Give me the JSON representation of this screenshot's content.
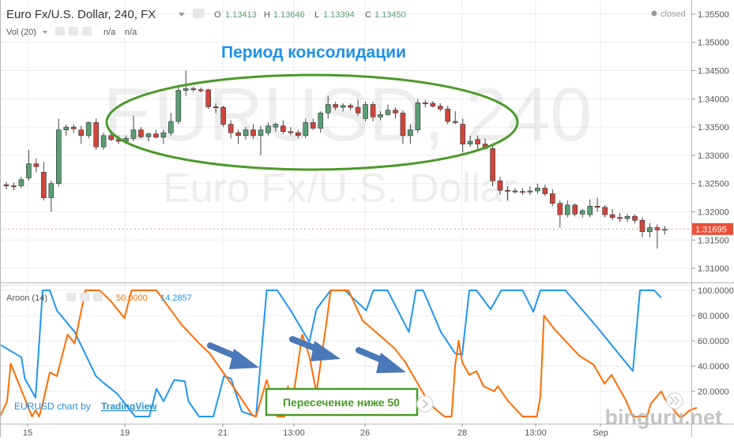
{
  "header": {
    "symbol": "Euro Fx/U.S. Dollar, 240, FX",
    "o_label": "O",
    "o_value": "1.13413",
    "h_label": "H",
    "h_value": "1.13646",
    "l_label": "L",
    "l_value": "1.13394",
    "c_label": "C",
    "c_value": "1.13450",
    "status": "closed",
    "vol_label": "Vol (20)",
    "vol_value1": "n/a",
    "vol_value2": "n/a"
  },
  "watermark": {
    "line1": "EURUSD, 240",
    "line2": "Euro Fx/U.S. Dollar"
  },
  "annotations": {
    "consolidation": "Период консолидации",
    "crossing": "Пересечение ниже 50"
  },
  "aroon": {
    "label": "Aroon (14)",
    "down_value": "50.0000",
    "up_value": "14.2857"
  },
  "credit": {
    "prefix": "EURUSD chart by",
    "brand": "TradingView"
  },
  "site_watermark": "binguru.net",
  "colors": {
    "bull": "#5a9e74",
    "bear": "#d0453c",
    "aroon_up": "#2196f3",
    "aroon_down": "#ff6d00",
    "ellipse": "#4a9a2a",
    "arrow": "#4a78b8",
    "title_blue": "#1e90e8",
    "price_tag": "#e8503a"
  },
  "chart_data": [
    {
      "type": "candlestick",
      "title": "Euro Fx/U.S. Dollar, 240, FX",
      "ylim": [
        1.3075,
        1.3575
      ],
      "price_axis_ticks": [
        "1.35500",
        "1.35000",
        "1.34500",
        "1.34000",
        "1.33500",
        "1.33000",
        "1.32500",
        "1.32000",
        "1.31500",
        "1.31000"
      ],
      "current_price_label": "1.31695",
      "time_axis_ticks": [
        "15",
        "19",
        "21",
        "13:00",
        "26",
        "28",
        "13:00",
        "Sep"
      ],
      "candles": [
        {
          "o": 1.3248,
          "h": 1.3253,
          "l": 1.324,
          "c": 1.3246
        },
        {
          "o": 1.3246,
          "h": 1.3252,
          "l": 1.3238,
          "c": 1.3245
        },
        {
          "o": 1.3246,
          "h": 1.3262,
          "l": 1.3242,
          "c": 1.3257
        },
        {
          "o": 1.326,
          "h": 1.331,
          "l": 1.3255,
          "c": 1.3285
        },
        {
          "o": 1.3285,
          "h": 1.3295,
          "l": 1.327,
          "c": 1.328
        },
        {
          "o": 1.327,
          "h": 1.3288,
          "l": 1.322,
          "c": 1.3225
        },
        {
          "o": 1.3225,
          "h": 1.3255,
          "l": 1.32,
          "c": 1.325
        },
        {
          "o": 1.325,
          "h": 1.3365,
          "l": 1.3245,
          "c": 1.3345
        },
        {
          "o": 1.3345,
          "h": 1.3355,
          "l": 1.3335,
          "c": 1.335
        },
        {
          "o": 1.335,
          "h": 1.3355,
          "l": 1.334,
          "c": 1.3347
        },
        {
          "o": 1.3345,
          "h": 1.3352,
          "l": 1.332,
          "c": 1.3335
        },
        {
          "o": 1.3335,
          "h": 1.336,
          "l": 1.333,
          "c": 1.3358
        },
        {
          "o": 1.3358,
          "h": 1.3365,
          "l": 1.331,
          "c": 1.3315
        },
        {
          "o": 1.3315,
          "h": 1.334,
          "l": 1.331,
          "c": 1.3335
        },
        {
          "o": 1.3335,
          "h": 1.334,
          "l": 1.3325,
          "c": 1.3328
        },
        {
          "o": 1.3328,
          "h": 1.3335,
          "l": 1.332,
          "c": 1.3325
        },
        {
          "o": 1.3325,
          "h": 1.3335,
          "l": 1.332,
          "c": 1.333
        },
        {
          "o": 1.333,
          "h": 1.337,
          "l": 1.3325,
          "c": 1.3345
        },
        {
          "o": 1.3345,
          "h": 1.335,
          "l": 1.333,
          "c": 1.3333
        },
        {
          "o": 1.3333,
          "h": 1.334,
          "l": 1.3325,
          "c": 1.3338
        },
        {
          "o": 1.3338,
          "h": 1.3345,
          "l": 1.333,
          "c": 1.3332
        },
        {
          "o": 1.3332,
          "h": 1.3345,
          "l": 1.332,
          "c": 1.334
        },
        {
          "o": 1.334,
          "h": 1.3375,
          "l": 1.3335,
          "c": 1.336
        },
        {
          "o": 1.336,
          "h": 1.3425,
          "l": 1.3355,
          "c": 1.3415
        },
        {
          "o": 1.3415,
          "h": 1.345,
          "l": 1.3405,
          "c": 1.3418
        },
        {
          "o": 1.3418,
          "h": 1.3422,
          "l": 1.3412,
          "c": 1.3416
        },
        {
          "o": 1.3416,
          "h": 1.342,
          "l": 1.3412,
          "c": 1.3415
        },
        {
          "o": 1.3416,
          "h": 1.3418,
          "l": 1.3382,
          "c": 1.3386
        },
        {
          "o": 1.3386,
          "h": 1.3392,
          "l": 1.3375,
          "c": 1.3385
        },
        {
          "o": 1.3385,
          "h": 1.3388,
          "l": 1.335,
          "c": 1.3355
        },
        {
          "o": 1.3355,
          "h": 1.3362,
          "l": 1.333,
          "c": 1.334
        },
        {
          "o": 1.334,
          "h": 1.3345,
          "l": 1.332,
          "c": 1.3335
        },
        {
          "o": 1.3335,
          "h": 1.335,
          "l": 1.3328,
          "c": 1.3345
        },
        {
          "o": 1.3345,
          "h": 1.3355,
          "l": 1.333,
          "c": 1.3335
        },
        {
          "o": 1.3335,
          "h": 1.3352,
          "l": 1.33,
          "c": 1.3345
        },
        {
          "o": 1.334,
          "h": 1.3358,
          "l": 1.3335,
          "c": 1.3352
        },
        {
          "o": 1.335,
          "h": 1.3358,
          "l": 1.3342,
          "c": 1.3355
        },
        {
          "o": 1.3352,
          "h": 1.3362,
          "l": 1.3338,
          "c": 1.3342
        },
        {
          "o": 1.3342,
          "h": 1.335,
          "l": 1.3335,
          "c": 1.334
        },
        {
          "o": 1.334,
          "h": 1.3345,
          "l": 1.333,
          "c": 1.3335
        },
        {
          "o": 1.3335,
          "h": 1.3365,
          "l": 1.333,
          "c": 1.3358
        },
        {
          "o": 1.3358,
          "h": 1.3365,
          "l": 1.3345,
          "c": 1.3348
        },
        {
          "o": 1.3348,
          "h": 1.3378,
          "l": 1.334,
          "c": 1.3375
        },
        {
          "o": 1.3375,
          "h": 1.3405,
          "l": 1.3365,
          "c": 1.339
        },
        {
          "o": 1.339,
          "h": 1.3395,
          "l": 1.338,
          "c": 1.3385
        },
        {
          "o": 1.3385,
          "h": 1.3392,
          "l": 1.3378,
          "c": 1.3388
        },
        {
          "o": 1.3388,
          "h": 1.3392,
          "l": 1.338,
          "c": 1.3385
        },
        {
          "o": 1.3385,
          "h": 1.3398,
          "l": 1.337,
          "c": 1.3375
        },
        {
          "o": 1.3365,
          "h": 1.3395,
          "l": 1.336,
          "c": 1.339
        },
        {
          "o": 1.339,
          "h": 1.3395,
          "l": 1.336,
          "c": 1.3368
        },
        {
          "o": 1.3368,
          "h": 1.3378,
          "l": 1.3362,
          "c": 1.3372
        },
        {
          "o": 1.3372,
          "h": 1.339,
          "l": 1.337,
          "c": 1.338
        },
        {
          "o": 1.338,
          "h": 1.3385,
          "l": 1.3365,
          "c": 1.3375
        },
        {
          "o": 1.3375,
          "h": 1.338,
          "l": 1.332,
          "c": 1.3335
        },
        {
          "o": 1.3335,
          "h": 1.3355,
          "l": 1.332,
          "c": 1.3345
        },
        {
          "o": 1.3345,
          "h": 1.34,
          "l": 1.334,
          "c": 1.3393
        },
        {
          "o": 1.3393,
          "h": 1.3398,
          "l": 1.3385,
          "c": 1.3392
        },
        {
          "o": 1.3392,
          "h": 1.3396,
          "l": 1.3385,
          "c": 1.3387
        },
        {
          "o": 1.3387,
          "h": 1.3392,
          "l": 1.3378,
          "c": 1.3382
        },
        {
          "o": 1.3382,
          "h": 1.3388,
          "l": 1.3355,
          "c": 1.336
        },
        {
          "o": 1.336,
          "h": 1.3378,
          "l": 1.3355,
          "c": 1.3358
        },
        {
          "o": 1.3355,
          "h": 1.3365,
          "l": 1.3305,
          "c": 1.332
        },
        {
          "o": 1.332,
          "h": 1.3335,
          "l": 1.3315,
          "c": 1.3325
        },
        {
          "o": 1.3328,
          "h": 1.3335,
          "l": 1.331,
          "c": 1.332
        },
        {
          "o": 1.332,
          "h": 1.333,
          "l": 1.331,
          "c": 1.3312
        },
        {
          "o": 1.3312,
          "h": 1.3318,
          "l": 1.3245,
          "c": 1.3255
        },
        {
          "o": 1.3255,
          "h": 1.3262,
          "l": 1.323,
          "c": 1.3238
        },
        {
          "o": 1.3238,
          "h": 1.3245,
          "l": 1.322,
          "c": 1.3237
        },
        {
          "o": 1.3237,
          "h": 1.3242,
          "l": 1.3232,
          "c": 1.3236
        },
        {
          "o": 1.3236,
          "h": 1.3242,
          "l": 1.323,
          "c": 1.3235
        },
        {
          "o": 1.3235,
          "h": 1.3245,
          "l": 1.323,
          "c": 1.3237
        },
        {
          "o": 1.3237,
          "h": 1.325,
          "l": 1.3232,
          "c": 1.3242
        },
        {
          "o": 1.3242,
          "h": 1.3248,
          "l": 1.3228,
          "c": 1.3232
        },
        {
          "o": 1.3232,
          "h": 1.324,
          "l": 1.321,
          "c": 1.3215
        },
        {
          "o": 1.3215,
          "h": 1.322,
          "l": 1.3172,
          "c": 1.3195
        },
        {
          "o": 1.3195,
          "h": 1.322,
          "l": 1.319,
          "c": 1.3212
        },
        {
          "o": 1.3212,
          "h": 1.3215,
          "l": 1.3192,
          "c": 1.3196
        },
        {
          "o": 1.3196,
          "h": 1.3205,
          "l": 1.319,
          "c": 1.3202
        },
        {
          "o": 1.3195,
          "h": 1.3222,
          "l": 1.319,
          "c": 1.321
        },
        {
          "o": 1.321,
          "h": 1.3225,
          "l": 1.32,
          "c": 1.3208
        },
        {
          "o": 1.3208,
          "h": 1.3212,
          "l": 1.319,
          "c": 1.3195
        },
        {
          "o": 1.3195,
          "h": 1.3205,
          "l": 1.3185,
          "c": 1.319
        },
        {
          "o": 1.319,
          "h": 1.3198,
          "l": 1.3182,
          "c": 1.3188
        },
        {
          "o": 1.3188,
          "h": 1.3196,
          "l": 1.3182,
          "c": 1.3192
        },
        {
          "o": 1.3192,
          "h": 1.3196,
          "l": 1.318,
          "c": 1.3185
        },
        {
          "o": 1.3185,
          "h": 1.319,
          "l": 1.3155,
          "c": 1.3165
        },
        {
          "o": 1.3165,
          "h": 1.318,
          "l": 1.3155,
          "c": 1.3172
        },
        {
          "o": 1.3172,
          "h": 1.3178,
          "l": 1.3135,
          "c": 1.3168
        },
        {
          "o": 1.3168,
          "h": 1.3175,
          "l": 1.316,
          "c": 1.3169
        }
      ]
    },
    {
      "type": "line",
      "title": "Aroon (14)",
      "ylim": [
        0,
        100
      ],
      "axis_ticks": [
        "100.0000",
        "80.0000",
        "60.0000",
        "40.0000",
        "20.0000"
      ],
      "series": [
        {
          "name": "up",
          "color": "#2196f3",
          "points": [
            [
              0,
              57
            ],
            [
              6,
              47
            ],
            [
              7,
              30
            ],
            [
              9,
              20
            ],
            [
              10,
              15
            ],
            [
              12,
              100
            ],
            [
              14,
              100
            ],
            [
              16,
              84
            ],
            [
              21,
              67
            ],
            [
              27,
              32
            ],
            [
              29,
              27
            ],
            [
              33,
              18
            ],
            [
              38,
              0
            ],
            [
              42,
              0
            ],
            [
              44,
              22
            ],
            [
              46,
              12
            ],
            [
              49,
              29
            ],
            [
              52,
              28
            ],
            [
              53,
              12
            ],
            [
              56,
              0
            ],
            [
              60,
              0
            ],
            [
              63,
              32
            ],
            [
              65,
              30
            ],
            [
              68,
              4
            ],
            [
              72,
              0
            ],
            [
              75,
              100
            ],
            [
              78,
              100
            ],
            [
              82,
              83
            ],
            [
              87,
              59
            ],
            [
              89,
              85
            ],
            [
              93,
              100
            ],
            [
              97,
              100
            ],
            [
              103,
              84
            ],
            [
              105,
              100
            ],
            [
              109,
              100
            ],
            [
              115,
              67
            ],
            [
              117,
              100
            ],
            [
              119,
              100
            ],
            [
              124,
              67
            ],
            [
              128,
              50
            ],
            [
              130,
              49
            ],
            [
              132,
              100
            ],
            [
              134,
              100
            ],
            [
              138,
              85
            ],
            [
              141,
              100
            ],
            [
              147,
              100
            ],
            [
              150,
              83
            ],
            [
              152,
              100
            ],
            [
              159,
              100
            ],
            [
              167,
              74
            ],
            [
              178,
              36
            ],
            [
              180,
              100
            ],
            [
              184,
              100
            ],
            [
              186,
              94
            ]
          ]
        },
        {
          "name": "down",
          "color": "#ff6d00",
          "points": [
            [
              0,
              0
            ],
            [
              2,
              12
            ],
            [
              3,
              42
            ],
            [
              9,
              0
            ],
            [
              10,
              5
            ],
            [
              11,
              0
            ],
            [
              12,
              10
            ],
            [
              14,
              35
            ],
            [
              16,
              32
            ],
            [
              19,
              65
            ],
            [
              21,
              58
            ],
            [
              24,
              100
            ],
            [
              28,
              100
            ],
            [
              31,
              92
            ],
            [
              35,
              78
            ],
            [
              37,
              100
            ],
            [
              44,
              100
            ],
            [
              51,
              73
            ],
            [
              56,
              58
            ],
            [
              59,
              50
            ],
            [
              66,
              22
            ],
            [
              71,
              1
            ],
            [
              72,
              0
            ],
            [
              75,
              29
            ],
            [
              78,
              0
            ],
            [
              80,
              0
            ],
            [
              81,
              24
            ],
            [
              82,
              6
            ],
            [
              85,
              65
            ],
            [
              87,
              48
            ],
            [
              89,
              19
            ],
            [
              92,
              78
            ],
            [
              93,
              100
            ],
            [
              98,
              100
            ],
            [
              102,
              76
            ],
            [
              111,
              54
            ],
            [
              114,
              43
            ],
            [
              120,
              14
            ],
            [
              122,
              7
            ],
            [
              125,
              0
            ],
            [
              127,
              0
            ],
            [
              128,
              40
            ],
            [
              129,
              60
            ],
            [
              130,
              43
            ],
            [
              132,
              33
            ],
            [
              134,
              36
            ],
            [
              136,
              24
            ],
            [
              139,
              20
            ],
            [
              140,
              24
            ],
            [
              143,
              12
            ],
            [
              147,
              0
            ],
            [
              151,
              0
            ],
            [
              152,
              16
            ],
            [
              153,
              80
            ],
            [
              156,
              69
            ],
            [
              163,
              48
            ],
            [
              167,
              41
            ],
            [
              170,
              26
            ],
            [
              172,
              33
            ],
            [
              176,
              13
            ],
            [
              178,
              0
            ],
            [
              182,
              0
            ],
            [
              183,
              10
            ],
            [
              186,
              20
            ],
            [
              187,
              14
            ],
            [
              191,
              0
            ],
            [
              192,
              0
            ],
            [
              194,
              5
            ],
            [
              196,
              7
            ]
          ]
        }
      ]
    }
  ]
}
